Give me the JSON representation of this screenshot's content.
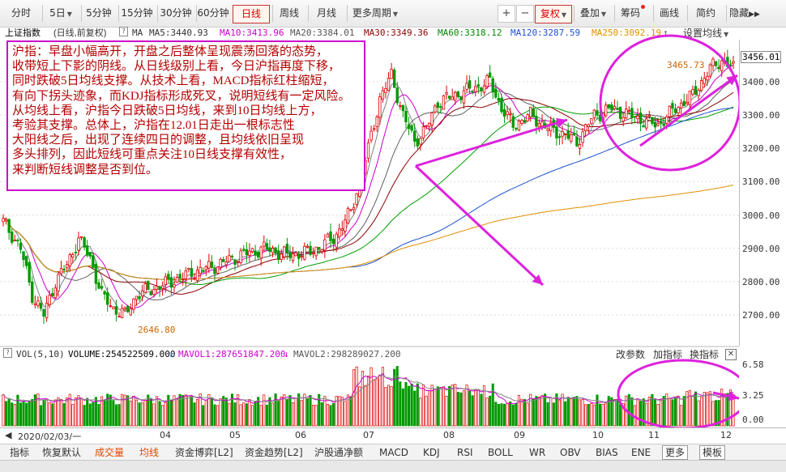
{
  "toolbar": {
    "periods": [
      "分时",
      "5日",
      "5分钟",
      "15分钟",
      "30分钟",
      "60分钟",
      "日线",
      "周线",
      "月线",
      "更多周期"
    ],
    "active": "日线",
    "right": [
      "复权",
      "叠加",
      "筹码",
      "画线",
      "简约",
      "隐藏"
    ]
  },
  "ma_bar": {
    "index_name": "上证指数",
    "mode": "(日线,前复权)",
    "ma_label": "MA",
    "ma5": "MA5:3440.93",
    "ma10": "MA10:3413.96",
    "ma20": "MA20:3384.01",
    "ma30": "MA30:3349.36",
    "ma60": "MA60:3318.12",
    "ma120": "MA120:3287.59",
    "ma250": "MA250:3092.19",
    "settings": "设置均线"
  },
  "colors": {
    "ma5": "#808080",
    "ma10": "#cc00cc",
    "ma20": "#606060",
    "ma30": "#8b0000",
    "ma60": "#00a000",
    "ma120": "#1e50d0",
    "ma250": "#e09000",
    "up": "#e00000",
    "down": "#009900",
    "annot": "#dd22dd"
  },
  "annotation": {
    "text": "沪指：早盘小幅高开，开盘之后整体呈现震荡回落的态势，\n收带短上下影的阴线。从日线级别上看，今日沪指再度下移，\n同时跌破5日均线支撑。从技术上看，MACD指标红柱缩短，\n有向下拐头迹象，而KDJ指标形成死叉，说明短线有一定风险。\n从均线上看，沪指今日跌破5日均线，来到10日均线上方，\n考验其支撑。总体上，沪指在12.01日走出一根标志性\n大阳线之后，出现了连续四日的调整，且均线依旧呈现\n多头排列，因此短线可重点关注10日线支撑有效性，\n来判断短线调整是否到位。"
  },
  "chart_data": {
    "type": "candlestick",
    "y_ticks": [
      "3456.01",
      "3400.00",
      "3300.00",
      "3200.00",
      "3100.00",
      "3000.00",
      "2900.00",
      "2800.00",
      "2700.00"
    ],
    "high_label": "3465.73",
    "low_label": "2646.80",
    "x_labels": [
      "2020/02/03/一",
      "04",
      "05",
      "06",
      "07",
      "08",
      "09",
      "10",
      "11",
      "12"
    ],
    "volume": {
      "header": "VOL(5,10)",
      "value": "VOLUME:254522509.000",
      "mavol1": "MAVOL1:287651847.200",
      "mavol2": "MAVOL2:298289027.200",
      "y_ticks": [
        "6.58",
        "3.25",
        "0.00"
      ],
      "buttons": [
        "改参数",
        "加指标",
        "换指标"
      ]
    }
  },
  "bottom_tabs": [
    "指标",
    "恢复默认",
    "成交量",
    "均线",
    "资金博弈[L2]",
    "资金趋势[L2]",
    "沪股通净额",
    "MACD",
    "KDJ",
    "RSI",
    "BOLL",
    "WR",
    "OBV",
    "BIAS",
    "ENE",
    "更多",
    "模板"
  ]
}
